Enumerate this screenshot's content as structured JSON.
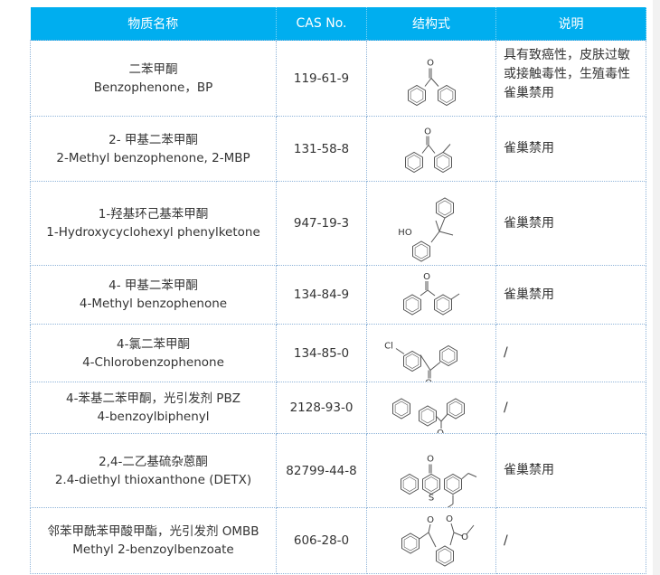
{
  "headers": [
    "物质名称",
    "CAS No.",
    "结构式",
    "说明"
  ],
  "rows": [
    {
      "cn": "二苯甲酮",
      "en": "Benzophenone，BP",
      "cas": "119-61-9",
      "structure": "benzophenone-structure",
      "desc": "具有致癌性，皮肤过敏或接触毒性，生殖毒性雀巢禁用"
    },
    {
      "cn": "2- 甲基二苯甲酮",
      "en": "2-Methyl benzophenone, 2-MBP",
      "cas": "131-58-8",
      "structure": "2-methylbenzophenone-structure",
      "desc": "雀巢禁用"
    },
    {
      "cn": "1-羟基环己基苯甲酮",
      "en": "1-Hydroxycyclohexyl phenylketone",
      "cas": "947-19-3",
      "structure": "hydroxycyclohexyl-phenylketone-structure",
      "desc": "雀巢禁用",
      "label": "HO"
    },
    {
      "cn": "4- 甲基二苯甲酮",
      "en": "4-Methyl benzophenone",
      "cas": "134-84-9",
      "structure": "4-methylbenzophenone-structure",
      "desc": "雀巢禁用"
    },
    {
      "cn": "4-氯二苯甲酮",
      "en": "4-Chlorobenzophenone",
      "cas": "134-85-0",
      "structure": "4-chlorobenzophenone-structure",
      "desc": "/",
      "label": "Cl"
    },
    {
      "cn": "4-苯基二苯甲酮，光引发剂 PBZ",
      "en": "4-benzoylbiphenyl",
      "cas": "2128-93-0",
      "structure": "4-benzoylbiphenyl-structure",
      "desc": "/"
    },
    {
      "cn": "2,4-二乙基硫杂蒽酮",
      "en": "2.4-diethyl thioxanthone (DETX)",
      "cas": "82799-44-8",
      "structure": "detx-structure",
      "desc": "雀巢禁用",
      "label": "S"
    },
    {
      "cn": "邻苯甲酰苯甲酸甲酯，光引发剂 OMBB",
      "en": "Methyl 2-benzoylbenzoate",
      "cas": "606-28-0",
      "structure": "ombb-structure",
      "desc": "/"
    }
  ],
  "colors": {
    "header_bg": "#00aeef",
    "grid": "#8fb4d9"
  }
}
